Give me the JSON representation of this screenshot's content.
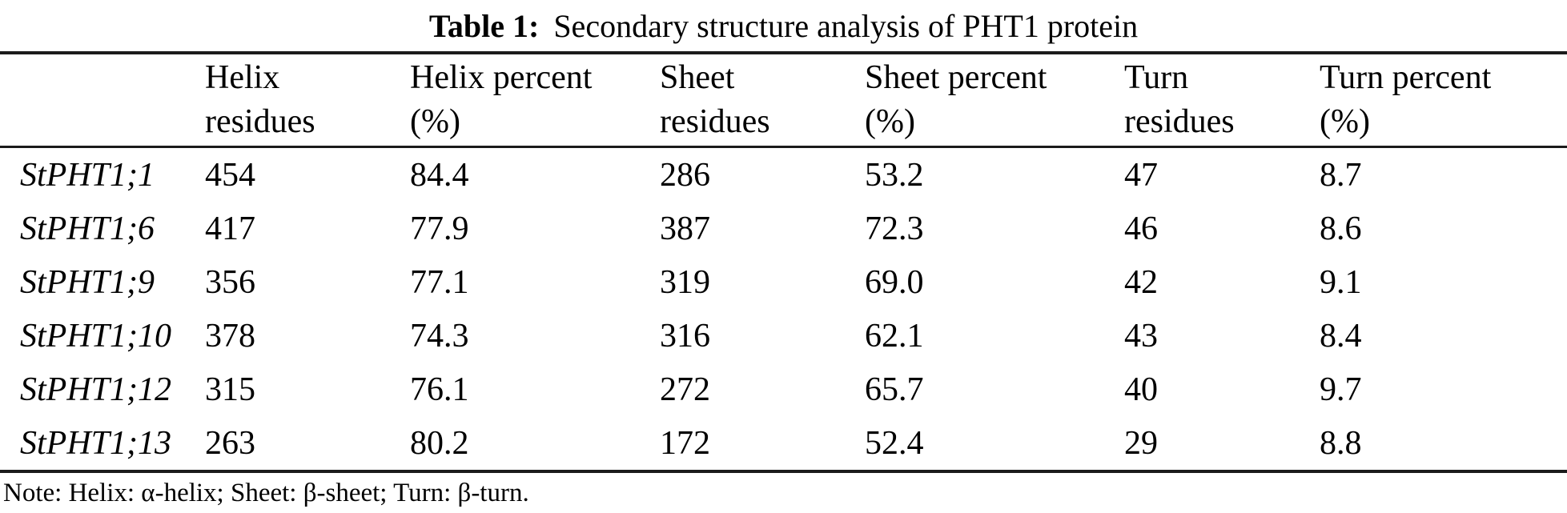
{
  "page": {
    "title_label": "Table 1:",
    "title_text": "Secondary structure analysis of PHT1 protein",
    "note": "Note: Helix: α-helix; Sheet: β-sheet; Turn: β-turn."
  },
  "colors": {
    "text": "#000000",
    "background": "#ffffff",
    "rule": "#1b1b1b"
  },
  "table": {
    "headers": [
      {
        "line1": "",
        "line2": ""
      },
      {
        "line1": "Helix",
        "line2": "residues"
      },
      {
        "line1": "Helix percent",
        "line2": "(%)"
      },
      {
        "line1": "Sheet",
        "line2": "residues"
      },
      {
        "line1": "Sheet percent",
        "line2": "(%)"
      },
      {
        "line1": "Turn",
        "line2": "residues"
      },
      {
        "line1": "Turn percent",
        "line2": "(%)"
      }
    ],
    "rows": [
      {
        "name": "StPHT1;1",
        "values": [
          "454",
          "84.4",
          "286",
          "53.2",
          "47",
          "8.7"
        ]
      },
      {
        "name": "StPHT1;6",
        "values": [
          "417",
          "77.9",
          "387",
          "72.3",
          "46",
          "8.6"
        ]
      },
      {
        "name": "StPHT1;9",
        "values": [
          "356",
          "77.1",
          "319",
          "69.0",
          "42",
          "9.1"
        ]
      },
      {
        "name": "StPHT1;10",
        "values": [
          "378",
          "74.3",
          "316",
          "62.1",
          "43",
          "8.4"
        ]
      },
      {
        "name": "StPHT1;12",
        "values": [
          "315",
          "76.1",
          "272",
          "65.7",
          "40",
          "9.7"
        ]
      },
      {
        "name": "StPHT1;13",
        "values": [
          "263",
          "80.2",
          "172",
          "52.4",
          "29",
          "8.8"
        ]
      }
    ]
  }
}
